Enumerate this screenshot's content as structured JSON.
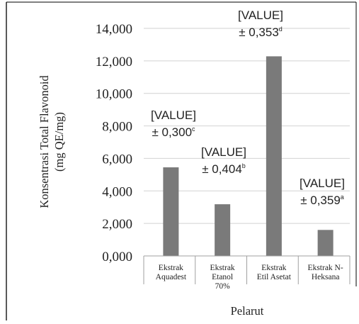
{
  "chart_data": {
    "type": "bar",
    "categories": [
      [
        "Ekstrak",
        "Aquadest"
      ],
      [
        "Ekstrak",
        "Etanol",
        "70%"
      ],
      [
        "Ekstrak",
        "Etil Asetat"
      ],
      [
        "Ekstrak N-",
        "Heksana"
      ]
    ],
    "values": [
      5.45,
      3.18,
      12.28,
      1.6
    ],
    "annotations": [
      {
        "value": "[VALUE]",
        "error": "± 0,300",
        "letter": "c"
      },
      {
        "value": "[VALUE]",
        "error": "± 0,404",
        "letter": "b"
      },
      {
        "value": "[VALUE]",
        "error": "± 0,353",
        "letter": "d"
      },
      {
        "value": "[VALUE]",
        "error": "± 0,359",
        "letter": "a"
      }
    ],
    "ylabel_lines": [
      "Konsentrasi Total Flavonoid",
      "(mg QE/mg)"
    ],
    "xlabel": "Pelarut",
    "ylim": [
      0,
      14
    ],
    "yticks": [
      0,
      2,
      4,
      6,
      8,
      10,
      12,
      14
    ],
    "ytick_labels": [
      "0,000",
      "2,000",
      "4,000",
      "6,000",
      "8,000",
      "10,000",
      "12,000",
      "14,000"
    ],
    "grid": true,
    "colors": {
      "bar": "#7a7a7a",
      "grid": "#d2d2d2",
      "axis": "#a0a0a0",
      "frame": "#000000"
    }
  }
}
